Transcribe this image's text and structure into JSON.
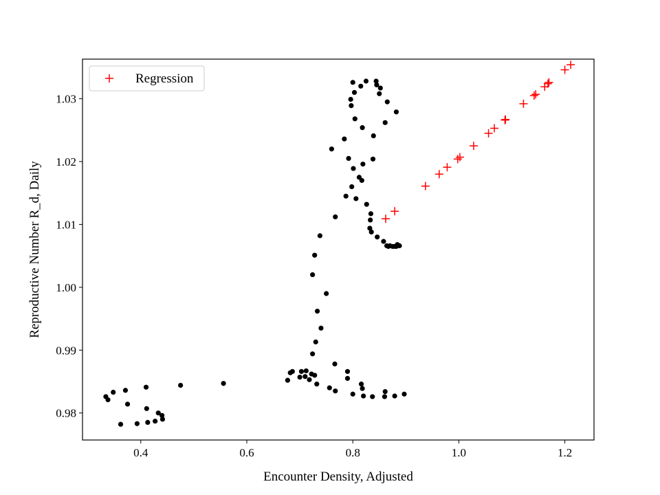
{
  "chart_data": {
    "type": "scatter",
    "title": "",
    "xlabel": "Encounter Density, Adjusted",
    "ylabel": "Reproductive Number R_d, Daily",
    "xlim": [
      0.29,
      1.255
    ],
    "ylim": [
      0.9757,
      1.0363
    ],
    "x_ticks": [
      0.4,
      0.6,
      0.8,
      1.0,
      1.2
    ],
    "x_tick_labels": [
      "0.4",
      "0.6",
      "0.8",
      "1.0",
      "1.2"
    ],
    "y_ticks": [
      0.98,
      0.99,
      1.0,
      1.01,
      1.02,
      1.03
    ],
    "y_tick_labels": [
      "0.98",
      "0.99",
      "1.00",
      "1.01",
      "1.02",
      "1.03"
    ],
    "grid": false,
    "legend_position": "upper-left",
    "series": [
      {
        "name": "",
        "marker": "dot",
        "color": "#000000",
        "points": [
          [
            0.334,
            0.9826
          ],
          [
            0.338,
            0.9821
          ],
          [
            0.348,
            0.9833
          ],
          [
            0.362,
            0.9782
          ],
          [
            0.371,
            0.9836
          ],
          [
            0.375,
            0.9814
          ],
          [
            0.393,
            0.9783
          ],
          [
            0.41,
            0.9841
          ],
          [
            0.411,
            0.9807
          ],
          [
            0.413,
            0.9785
          ],
          [
            0.427,
            0.9787
          ],
          [
            0.433,
            0.98
          ],
          [
            0.44,
            0.9796
          ],
          [
            0.441,
            0.979
          ],
          [
            0.475,
            0.9844
          ],
          [
            0.556,
            0.9847
          ],
          [
            0.677,
            0.9852
          ],
          [
            0.682,
            0.9864
          ],
          [
            0.686,
            0.9866
          ],
          [
            0.7,
            0.9857
          ],
          [
            0.703,
            0.9866
          ],
          [
            0.71,
            0.9858
          ],
          [
            0.712,
            0.9867
          ],
          [
            0.718,
            0.9853
          ],
          [
            0.722,
            0.9862
          ],
          [
            0.728,
            0.986
          ],
          [
            0.732,
            0.9846
          ],
          [
            0.756,
            0.984
          ],
          [
            0.767,
            0.9835
          ],
          [
            0.79,
            0.9866
          ],
          [
            0.79,
            0.9855
          ],
          [
            0.8,
            0.983
          ],
          [
            0.816,
            0.9846
          ],
          [
            0.818,
            0.9839
          ],
          [
            0.82,
            0.9827
          ],
          [
            0.837,
            0.9826
          ],
          [
            0.86,
            0.9826
          ],
          [
            0.861,
            0.9834
          ],
          [
            0.879,
            0.9827
          ],
          [
            0.897,
            0.983
          ],
          [
            0.724,
            0.9894
          ],
          [
            0.73,
            0.9913
          ],
          [
            0.733,
            0.9962
          ],
          [
            0.74,
            0.9935
          ],
          [
            0.724,
            1.002
          ],
          [
            0.728,
            1.0051
          ],
          [
            0.738,
            1.0082
          ],
          [
            0.75,
            0.999
          ],
          [
            0.766,
            0.9878
          ],
          [
            0.767,
            1.0112
          ],
          [
            0.76,
            1.022
          ],
          [
            0.784,
            1.0236
          ],
          [
            0.787,
            1.0145
          ],
          [
            0.792,
            1.0205
          ],
          [
            0.796,
            1.0299
          ],
          [
            0.797,
            1.0289
          ],
          [
            0.798,
            1.016
          ],
          [
            0.8,
            1.0326
          ],
          [
            0.801,
            1.0189
          ],
          [
            0.803,
            1.031
          ],
          [
            0.804,
            1.0268
          ],
          [
            0.806,
            1.0141
          ],
          [
            0.812,
            1.0175
          ],
          [
            0.815,
            1.032
          ],
          [
            0.817,
            1.017
          ],
          [
            0.818,
            1.0254
          ],
          [
            0.819,
            1.0196
          ],
          [
            0.825,
            1.0328
          ],
          [
            0.826,
            1.0132
          ],
          [
            0.832,
            1.0094
          ],
          [
            0.833,
            1.0107
          ],
          [
            0.834,
            1.0117
          ],
          [
            0.835,
            1.0088
          ],
          [
            0.838,
            1.0204
          ],
          [
            0.839,
            1.0241
          ],
          [
            0.844,
            1.0328
          ],
          [
            0.845,
            1.0322
          ],
          [
            0.846,
            1.008
          ],
          [
            0.85,
            1.0308
          ],
          [
            0.852,
            1.0317
          ],
          [
            0.858,
            1.0073
          ],
          [
            0.861,
            1.0262
          ],
          [
            0.864,
            1.0066
          ],
          [
            0.865,
            1.0295
          ],
          [
            0.867,
            1.0065
          ],
          [
            0.87,
            1.0066
          ],
          [
            0.875,
            1.0065
          ],
          [
            0.879,
            1.0065
          ],
          [
            0.882,
            1.0279
          ],
          [
            0.882,
            1.0065
          ],
          [
            0.884,
            1.0068
          ],
          [
            0.888,
            1.0066
          ]
        ]
      },
      {
        "name": "Regression",
        "marker": "plus",
        "color": "#ff0000",
        "points": [
          [
            0.862,
            1.0109
          ],
          [
            0.879,
            1.0121
          ],
          [
            0.937,
            1.0161
          ],
          [
            0.963,
            1.018
          ],
          [
            0.978,
            1.0191
          ],
          [
            0.998,
            1.0204
          ],
          [
            1.002,
            1.0207
          ],
          [
            1.028,
            1.0225
          ],
          [
            1.056,
            1.0245
          ],
          [
            1.067,
            1.0253
          ],
          [
            1.087,
            1.0266
          ],
          [
            1.088,
            1.0267
          ],
          [
            1.122,
            1.0292
          ],
          [
            1.142,
            1.0305
          ],
          [
            1.145,
            1.0307
          ],
          [
            1.162,
            1.0319
          ],
          [
            1.168,
            1.0324
          ],
          [
            1.17,
            1.0326
          ],
          [
            1.2,
            1.0346
          ],
          [
            1.211,
            1.0354
          ]
        ]
      }
    ]
  }
}
